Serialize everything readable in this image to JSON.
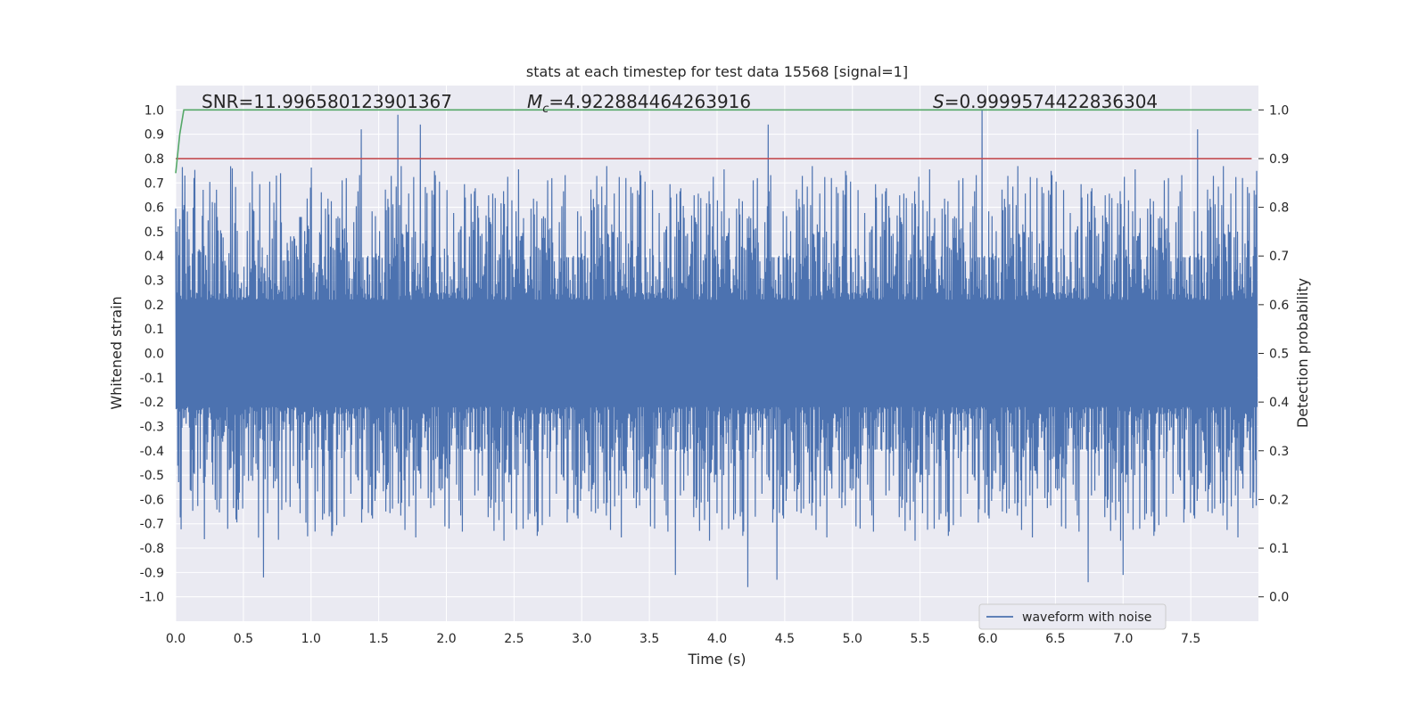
{
  "chart_data": {
    "type": "line",
    "title": "stats at each timestep for test data 15568 [signal=1]",
    "xlabel": "Time (s)",
    "ylabel": "Whitened strain",
    "ylabel_right": "Detection probability",
    "xlim": [
      0.0,
      8.0
    ],
    "ylim": [
      -1.1,
      1.1
    ],
    "ylim_right": [
      -0.05,
      1.05
    ],
    "x_ticks": [
      "0.0",
      "0.5",
      "1.0",
      "1.5",
      "2.0",
      "2.5",
      "3.0",
      "3.5",
      "4.0",
      "4.5",
      "5.0",
      "5.5",
      "6.0",
      "6.5",
      "7.0",
      "7.5"
    ],
    "y_ticks": [
      "1.0",
      "0.9",
      "0.8",
      "0.7",
      "0.6",
      "0.5",
      "0.4",
      "0.3",
      "0.2",
      "0.1",
      "0.0",
      "-0.1",
      "-0.2",
      "-0.3",
      "-0.4",
      "-0.5",
      "-0.6",
      "-0.7",
      "-0.8",
      "-0.9",
      "-1.0"
    ],
    "y_ticks_right": [
      "1.0",
      "0.9",
      "0.8",
      "0.7",
      "0.6",
      "0.5",
      "0.4",
      "0.3",
      "0.2",
      "0.1",
      "0.0"
    ],
    "grid": true,
    "legend_position": "lower-right",
    "annotations": {
      "snr": "SNR=11.996580123901367",
      "mc": "=4.922884464263916",
      "mc_symbol": "M",
      "mc_sub": "c",
      "s": "=0.9999574422836304",
      "s_symbol": "S"
    },
    "series": [
      {
        "name": "waveform with noise",
        "axis": "left",
        "color": "#4c72b0",
        "description_of_values": "dense noise band approx. ±0.3 to ±0.7 with spikes up to 1.0 and down to -0.96",
        "peaks": [
          {
            "x": 0.65,
            "y": -0.92
          },
          {
            "x": 1.37,
            "y": 0.92
          },
          {
            "x": 1.64,
            "y": 0.98
          },
          {
            "x": 1.81,
            "y": 0.94
          },
          {
            "x": 3.69,
            "y": -0.91
          },
          {
            "x": 4.23,
            "y": -0.96
          },
          {
            "x": 4.38,
            "y": 0.94
          },
          {
            "x": 4.44,
            "y": -0.93
          },
          {
            "x": 5.96,
            "y": 1.0
          },
          {
            "x": 6.74,
            "y": -0.94
          },
          {
            "x": 7.0,
            "y": -0.91
          },
          {
            "x": 7.55,
            "y": 0.92
          }
        ]
      },
      {
        "name": "",
        "axis": "right",
        "color": "#55a868",
        "x": [
          0.0,
          0.03,
          0.06,
          0.1,
          7.95
        ],
        "y": [
          0.87,
          0.95,
          1.0,
          1.0,
          1.0
        ]
      },
      {
        "name": "",
        "axis": "right",
        "color": "#c44e52",
        "x": [
          0.0,
          7.95
        ],
        "y": [
          0.9,
          0.9
        ]
      }
    ]
  }
}
